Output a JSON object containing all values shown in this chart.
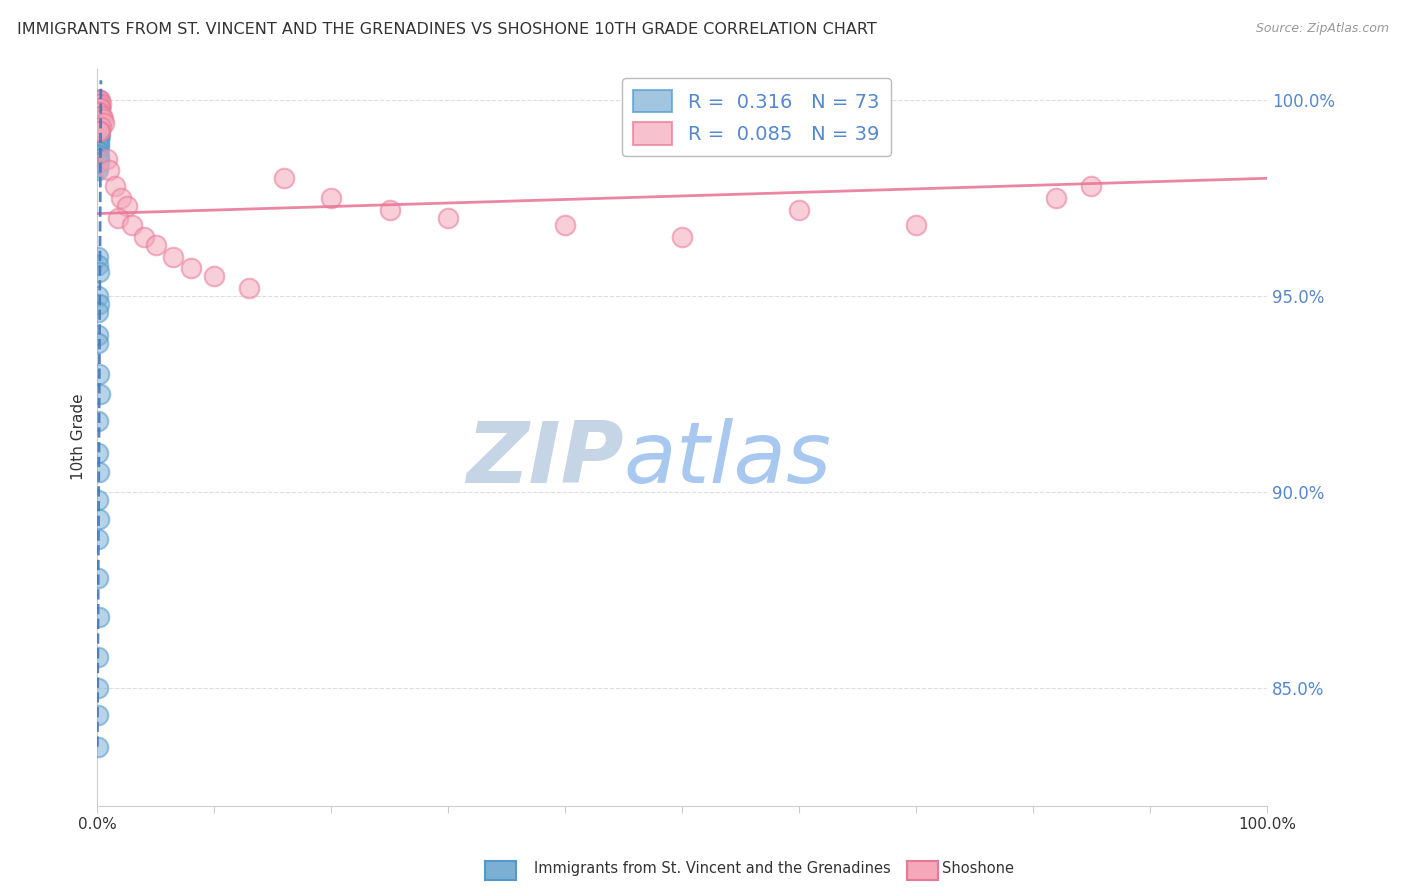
{
  "title": "IMMIGRANTS FROM ST. VINCENT AND THE GRENADINES VS SHOSHONE 10TH GRADE CORRELATION CHART",
  "source": "Source: ZipAtlas.com",
  "ylabel": "10th Grade",
  "right_yticks": [
    1.0,
    0.95,
    0.9,
    0.85
  ],
  "right_ytick_labels": [
    "100.0%",
    "95.0%",
    "90.0%",
    "85.0%"
  ],
  "xlim": [
    0.0,
    1.0
  ],
  "ylim": [
    0.82,
    1.008
  ],
  "blue_R": 0.316,
  "blue_N": 73,
  "pink_R": 0.085,
  "pink_N": 39,
  "blue_color": "#7BAFD4",
  "blue_edge_color": "#5599CC",
  "pink_color": "#F4A8B8",
  "pink_edge_color": "#E87898",
  "trendline_blue_color": "#4477BB",
  "trendline_pink_color": "#E87898",
  "watermark_zip_color": "#C8D8E8",
  "watermark_atlas_color": "#A8C8E8",
  "legend_border_color": "#BBBBBB",
  "grid_color": "#DDDDDD",
  "axis_color": "#CCCCCC",
  "text_color": "#333333",
  "right_tick_color": "#5588CC",
  "blue_scatter_x": [
    0.0005,
    0.001,
    0.0008,
    0.0015,
    0.001,
    0.0005,
    0.002,
    0.001,
    0.0012,
    0.0008,
    0.0006,
    0.0009,
    0.0007,
    0.0011,
    0.0013,
    0.0004,
    0.0016,
    0.0008,
    0.0006,
    0.001,
    0.0009,
    0.0007,
    0.0005,
    0.0014,
    0.001,
    0.0012,
    0.0006,
    0.0009,
    0.0005,
    0.0011,
    0.002,
    0.0008,
    0.0006,
    0.0013,
    0.0009,
    0.0015,
    0.0005,
    0.0008,
    0.001,
    0.0006,
    0.0009,
    0.0005,
    0.0012,
    0.0008,
    0.0016,
    0.0004,
    0.0009,
    0.0011,
    0.0006,
    0.0009,
    0.0007,
    0.0008,
    0.0005,
    0.0015,
    0.0009,
    0.0011,
    0.0004,
    0.0008,
    0.0005,
    0.0012,
    0.002,
    0.0009,
    0.0005,
    0.0013,
    0.0007,
    0.0015,
    0.0004,
    0.0008,
    0.001,
    0.0005,
    0.0008,
    0.0004,
    0.0007
  ],
  "blue_scatter_y": [
    1.0,
    1.0,
    0.999,
    0.999,
    0.999,
    0.998,
    0.998,
    0.998,
    0.998,
    0.997,
    0.997,
    0.997,
    0.996,
    0.996,
    0.996,
    0.995,
    0.995,
    0.995,
    0.995,
    0.994,
    0.994,
    0.994,
    0.993,
    0.993,
    0.993,
    0.992,
    0.992,
    0.992,
    0.991,
    0.991,
    0.991,
    0.99,
    0.99,
    0.99,
    0.989,
    0.989,
    0.988,
    0.988,
    0.988,
    0.987,
    0.987,
    0.987,
    0.986,
    0.986,
    0.985,
    0.985,
    0.985,
    0.984,
    0.984,
    0.983,
    0.982,
    0.96,
    0.958,
    0.956,
    0.95,
    0.948,
    0.946,
    0.94,
    0.938,
    0.93,
    0.925,
    0.918,
    0.91,
    0.905,
    0.898,
    0.893,
    0.888,
    0.878,
    0.868,
    0.858,
    0.85,
    0.843,
    0.835
  ],
  "pink_scatter_x": [
    0.0005,
    0.001,
    0.002,
    0.003,
    0.0008,
    0.0015,
    0.0025,
    0.0007,
    0.0018,
    0.0035,
    0.004,
    0.005,
    0.006,
    0.003,
    0.002,
    0.001,
    0.008,
    0.01,
    0.015,
    0.02,
    0.025,
    0.018,
    0.03,
    0.04,
    0.05,
    0.065,
    0.08,
    0.1,
    0.13,
    0.16,
    0.2,
    0.25,
    0.3,
    0.4,
    0.5,
    0.6,
    0.7,
    0.82,
    0.85
  ],
  "pink_scatter_y": [
    1.0,
    1.0,
    1.0,
    0.999,
    0.999,
    0.998,
    0.998,
    0.997,
    0.997,
    0.996,
    0.996,
    0.995,
    0.994,
    0.993,
    0.992,
    0.992,
    0.985,
    0.982,
    0.978,
    0.975,
    0.973,
    0.97,
    0.968,
    0.965,
    0.963,
    0.96,
    0.957,
    0.955,
    0.952,
    0.98,
    0.975,
    0.972,
    0.97,
    0.968,
    0.965,
    0.972,
    0.968,
    0.975,
    0.978
  ],
  "pink_trendline_x0": 0.0,
  "pink_trendline_x1": 1.0,
  "pink_trendline_y0": 0.971,
  "pink_trendline_y1": 0.98,
  "blue_trendline_x0": 0.0,
  "blue_trendline_x1": 0.003,
  "blue_trendline_y0": 0.835,
  "blue_trendline_y1": 1.005
}
